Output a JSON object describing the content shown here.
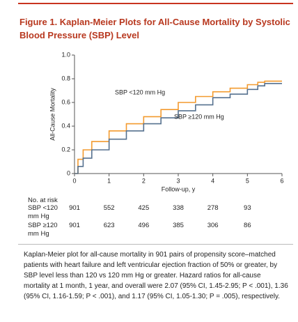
{
  "chart_data": {
    "type": "step",
    "title": "Figure 1. Kaplan-Meier Plots for All-Cause Mortality by Systolic Blood Pressure (SBP) Level",
    "y_label": "All-Cause Mortality",
    "x_label": "Follow-up, y",
    "x": [
      0,
      0.1,
      0.25,
      0.5,
      1,
      1.5,
      2,
      2.5,
      3,
      3.5,
      4,
      4.5,
      5,
      5.3,
      5.5,
      6
    ],
    "series": [
      {
        "name": "SBP <120 mm Hg",
        "color": "#f39a2e",
        "values": [
          0,
          0.12,
          0.2,
          0.27,
          0.36,
          0.42,
          0.48,
          0.54,
          0.6,
          0.65,
          0.69,
          0.72,
          0.75,
          0.77,
          0.78,
          0.78
        ]
      },
      {
        "name": "SBP ≥120 mm Hg",
        "color": "#56718f",
        "values": [
          0,
          0.06,
          0.13,
          0.2,
          0.29,
          0.36,
          0.42,
          0.47,
          0.53,
          0.58,
          0.64,
          0.67,
          0.71,
          0.74,
          0.76,
          0.76
        ]
      }
    ],
    "xlim": [
      0,
      6
    ],
    "xticks": [
      0,
      1,
      2,
      3,
      4,
      5,
      6
    ],
    "ylim": [
      0,
      1
    ],
    "yticks": [
      0,
      0.2,
      0.4,
      0.6,
      0.8,
      {
        "value": 1,
        "label": "1.0"
      }
    ],
    "at_risk": {
      "title": "No. at risk",
      "rows": [
        {
          "label": "SBP <120 mm Hg",
          "values": [
            901,
            552,
            425,
            338,
            278,
            93
          ]
        },
        {
          "label": "SBP ≥120 mm Hg",
          "values": [
            901,
            623,
            496,
            385,
            306,
            86
          ]
        }
      ]
    },
    "caption": "Kaplan-Meier plot for all-cause mortality in 901 pairs of propensity score–matched patients with heart failure and left ventricular ejection fraction of 50% or greater, by SBP level less than 120 vs 120 mm Hg or greater. Hazard ratios for all-cause mortality at 1 month, 1 year, and overall were 2.07 (95% CI, 1.45-2.95; P < .001), 1.36 (95% CI, 1.16-1.59; P < .001), and 1.17 (95% CI, 1.05-1.30; P = .005), respectively."
  }
}
